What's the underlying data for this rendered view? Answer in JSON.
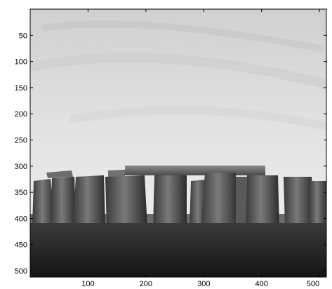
{
  "chart_data": {
    "type": "heatmap",
    "title": "",
    "xlabel": "",
    "ylabel": "",
    "xlim": [
      0,
      512
    ],
    "ylim": [
      512,
      0
    ],
    "x_ticks": [
      100,
      200,
      300,
      400,
      500
    ],
    "y_ticks": [
      50,
      100,
      150,
      200,
      250,
      300,
      350,
      400,
      450,
      500
    ],
    "x_tick_labels": [
      "100",
      "200",
      "300",
      "400",
      "500"
    ],
    "y_tick_labels": [
      "50",
      "100",
      "150",
      "200",
      "250",
      "300",
      "350",
      "400",
      "450",
      "500"
    ],
    "grid": false,
    "colormap": "gray",
    "image_content": "grayscale photograph of stone megaliths under a cloudy sky"
  },
  "colors": {
    "axis": "#000000",
    "background": "#ffffff",
    "sky_top": "#d0d0d0",
    "sky_mid": "#e4e4e4",
    "sky_horizon": "#f2f2f2",
    "ground_top": "#3a3a3a",
    "ground_bottom": "#141414",
    "stone_light": "#8a8a8a",
    "stone_mid": "#5a5a5a",
    "stone_dark": "#2e2e2e"
  }
}
